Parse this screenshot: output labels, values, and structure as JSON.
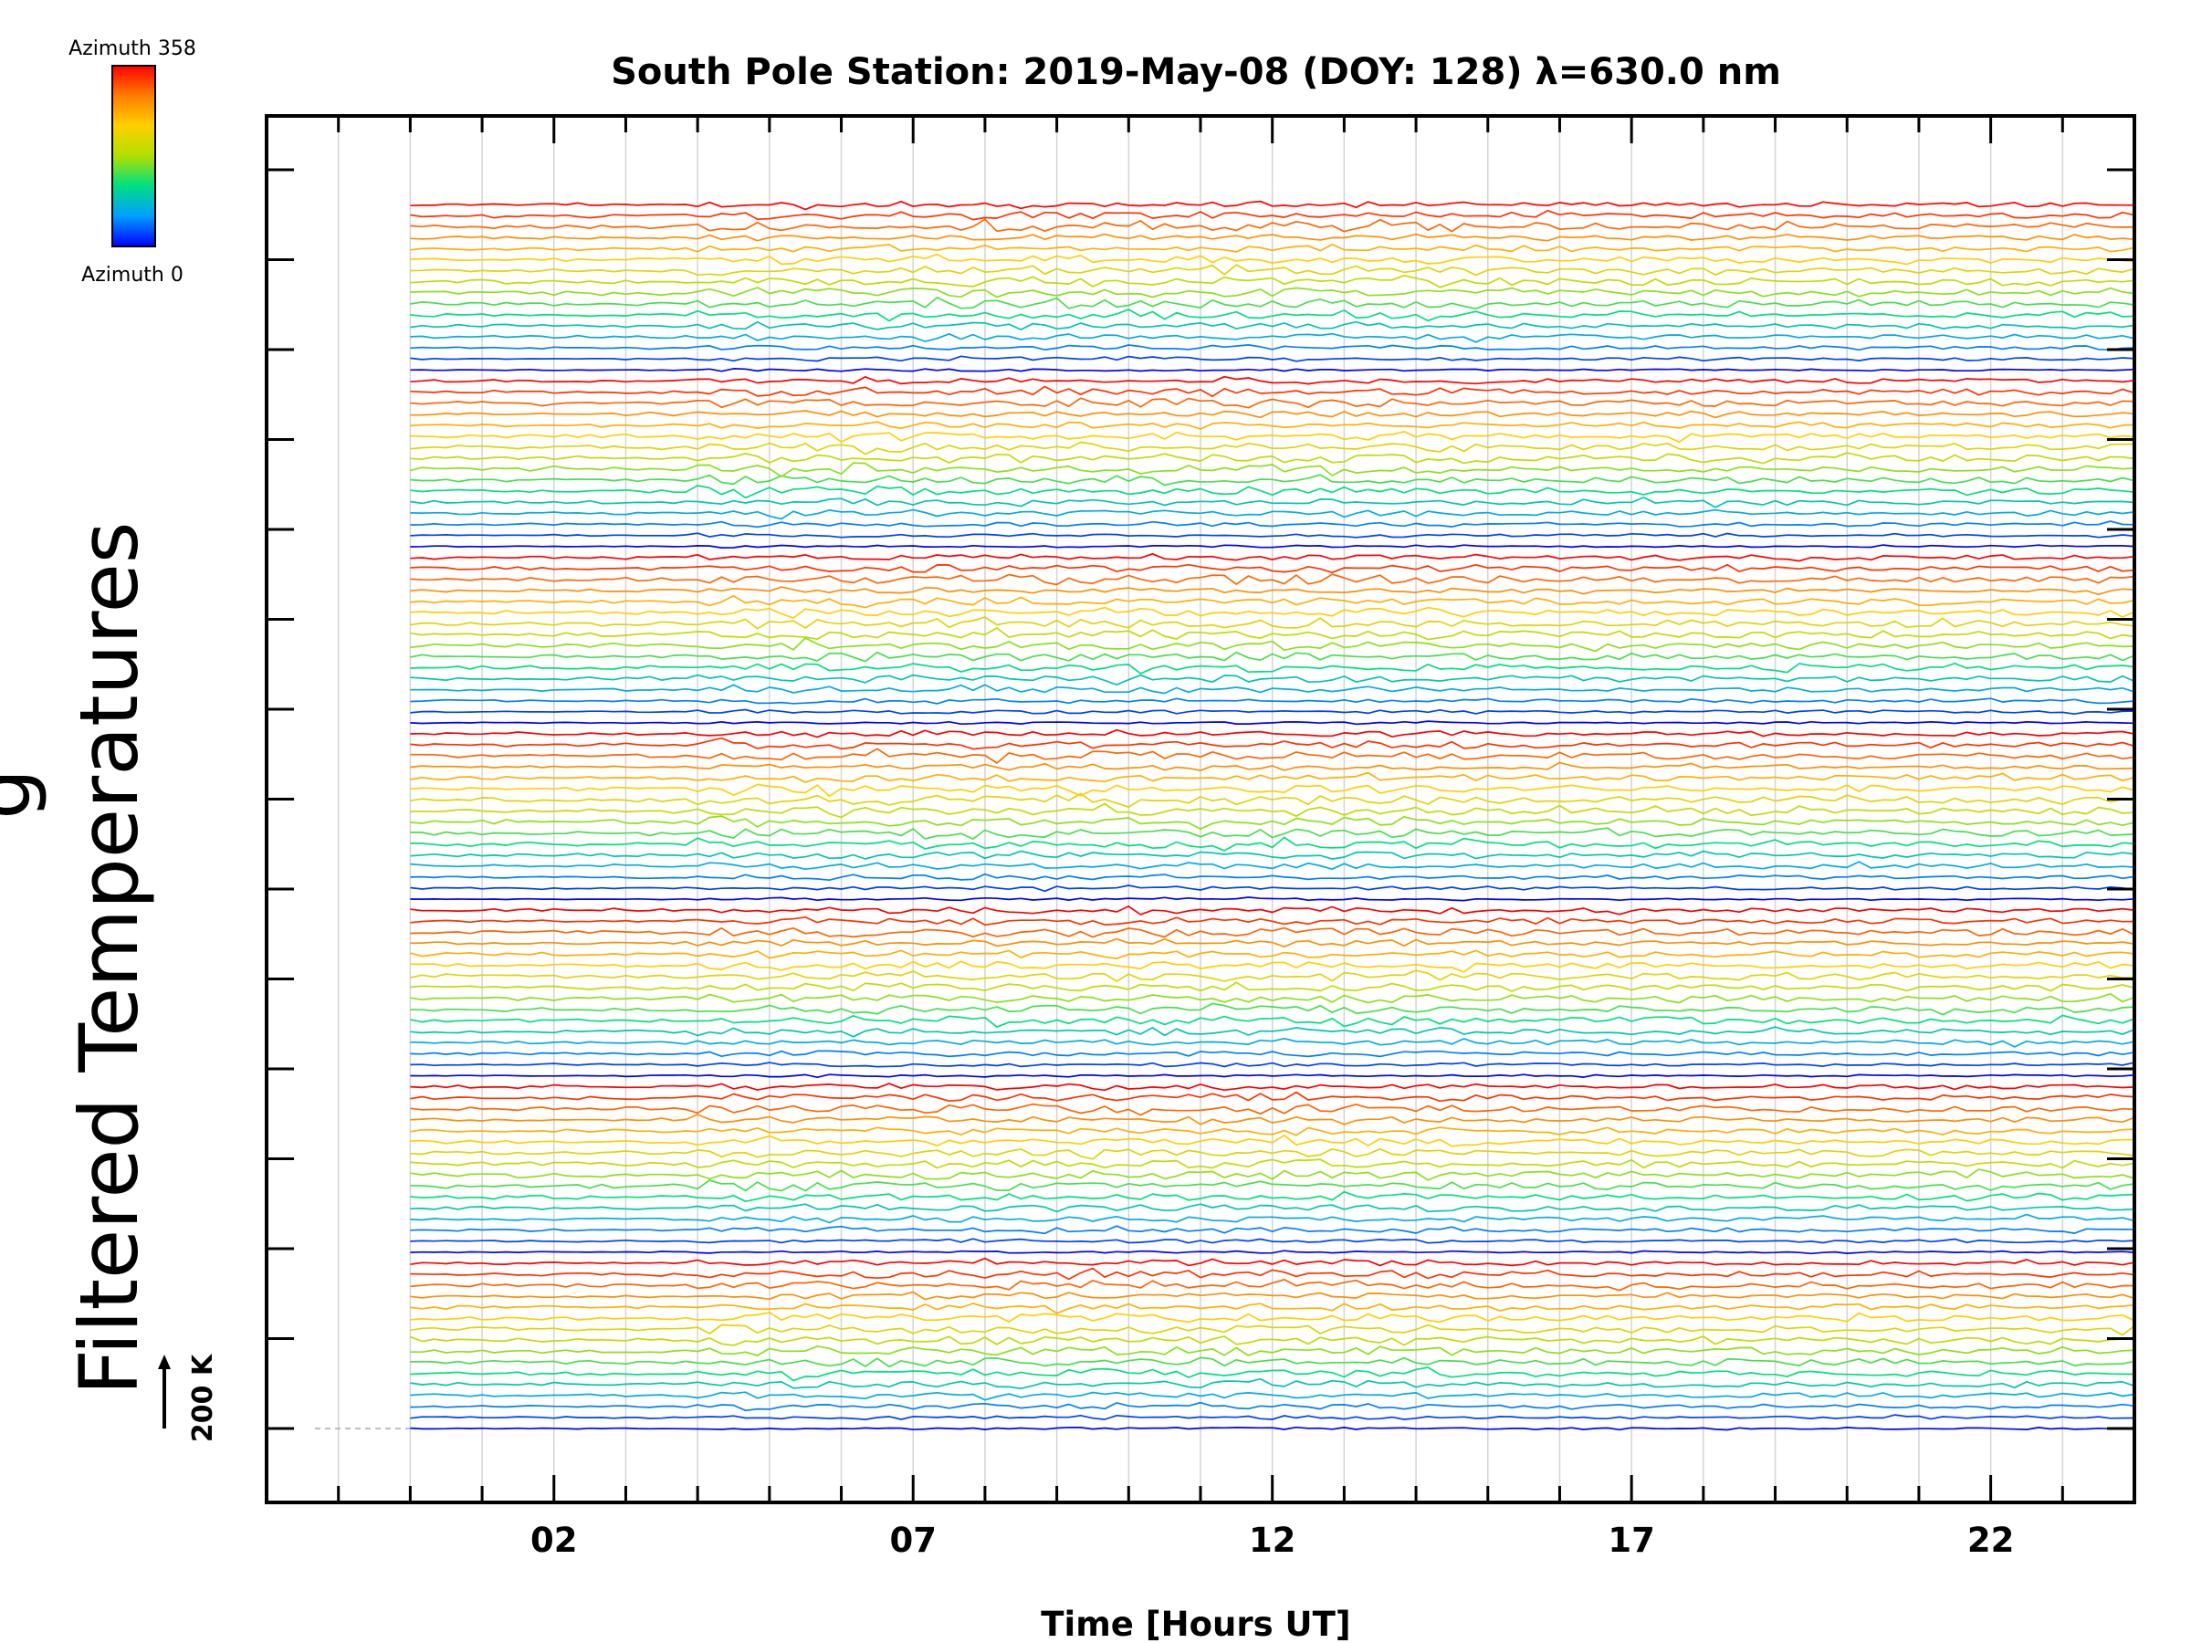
{
  "chart_data": {
    "type": "line",
    "title": "South Pole Station: 2019-May-08 (DOY: 128) λ=630.0 nm",
    "xlabel": "Time [Hours UT]",
    "ylabel": "Filtered Temperatures",
    "ylabel_cut": "g",
    "x_tick_labels": [
      "02",
      "07",
      "12",
      "17",
      "22"
    ],
    "x_tick_values": [
      2,
      7,
      12,
      17,
      22
    ],
    "xlim": [
      -2,
      24
    ],
    "data_x_range": [
      0,
      24
    ],
    "grid": true,
    "scale_bar": "200 K",
    "colorbar": {
      "top_label": "Azimuth 358",
      "bottom_label": "Azimuth 0",
      "colormap": [
        "#0000ff",
        "#00a0ff",
        "#00e080",
        "#b0e000",
        "#ffd000",
        "#ff8000",
        "#ff0000"
      ],
      "position": "top-left"
    },
    "series_description": {
      "groups": 7,
      "traces_per_group": 16,
      "azimuth_range": [
        0,
        358
      ],
      "order": "each group stacked upward from blue (azimuth 0) through cyan, green, yellow to red (azimuth 358)"
    }
  }
}
